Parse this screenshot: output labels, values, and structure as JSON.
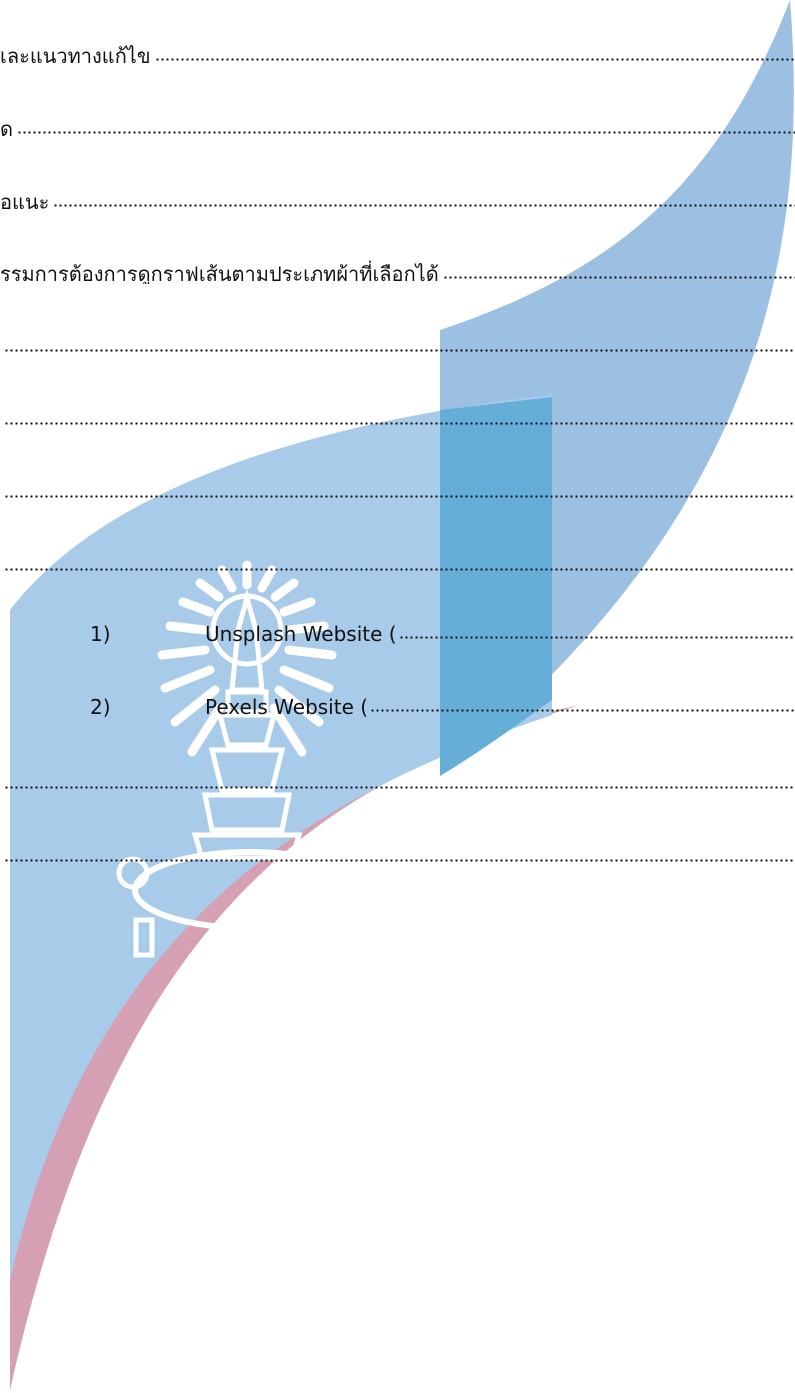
{
  "toc": [
    {
      "text": "เละแนวทางแก้ไข"
    },
    {
      "text": "ด"
    },
    {
      "text": "อแนะ"
    },
    {
      "text": "รรมการต้องการดูกราฟเส้นตามประเภทผ้าที่เลือกได้"
    },
    {
      "text": ""
    },
    {
      "text": ""
    },
    {
      "text": ""
    },
    {
      "text": ""
    }
  ],
  "references": [
    {
      "number": "1)",
      "text": "Unsplash Website ("
    },
    {
      "number": "2)",
      "text": "Pexels Website ("
    }
  ],
  "trailing_lines": [
    {
      "text": ""
    },
    {
      "text": ""
    }
  ],
  "colors": {
    "band_blue": "#9cc0e2",
    "band_light": "#a9cbea",
    "overlap_blue": "#65aed8",
    "band_pink": "#d6a0b4",
    "emblem": "#ffffff"
  }
}
